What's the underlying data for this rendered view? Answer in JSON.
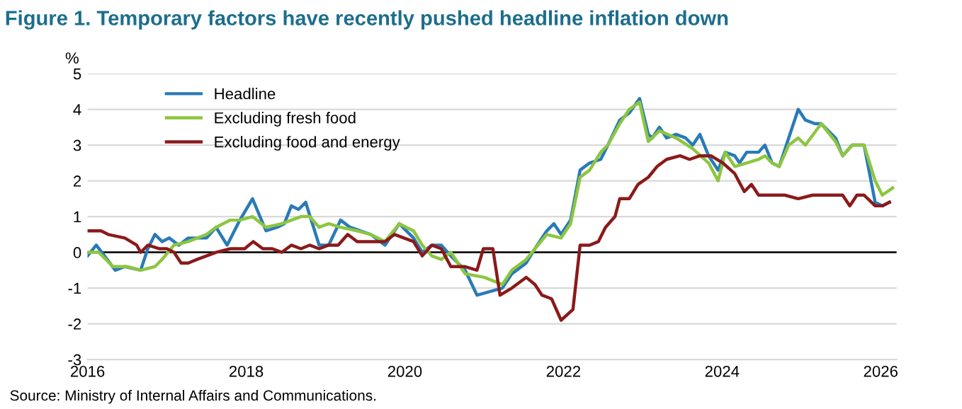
{
  "chart_data": {
    "type": "line",
    "title": "Figure 1. Temporary factors have recently pushed headline inflation down",
    "ylabel": "%",
    "annotations": [
      "Source: Ministry of Internal Affairs and Communications."
    ],
    "series": [
      {
        "name": "Headline",
        "color": "#2a7ab8",
        "x": [
          2016.0,
          2016.11,
          2016.35,
          2016.47,
          2016.67,
          2016.76,
          2016.85,
          2016.94,
          2017.03,
          2017.15,
          2017.27,
          2017.5,
          2017.62,
          2017.76,
          2017.92,
          2018.08,
          2018.25,
          2018.39,
          2018.48,
          2018.57,
          2018.66,
          2018.75,
          2018.92,
          2019.04,
          2019.19,
          2019.31,
          2019.57,
          2019.75,
          2019.93,
          2020.11,
          2020.22,
          2020.34,
          2020.46,
          2020.58,
          2020.76,
          2020.91,
          2021.23,
          2021.35,
          2021.53,
          2021.64,
          2021.79,
          2021.88,
          2021.97,
          2022.09,
          2022.21,
          2022.33,
          2022.47,
          2022.56,
          2022.71,
          2022.83,
          2022.96,
          2023.07,
          2023.12,
          2023.21,
          2023.3,
          2023.42,
          2023.54,
          2023.63,
          2023.72,
          2023.83,
          2023.95,
          2024.04,
          2024.16,
          2024.22,
          2024.31,
          2024.46,
          2024.54,
          2024.63,
          2024.72,
          2024.84,
          2024.96,
          2025.05,
          2025.17,
          2025.25,
          2025.43,
          2025.52,
          2025.64,
          2025.79,
          2025.93,
          2026.02,
          2026.11
        ],
        "values": [
          -0.1,
          0.2,
          -0.5,
          -0.4,
          -0.5,
          0.1,
          0.5,
          0.3,
          0.4,
          0.2,
          0.4,
          0.4,
          0.7,
          0.2,
          0.9,
          1.5,
          0.6,
          0.7,
          0.8,
          1.3,
          1.2,
          1.4,
          0.2,
          0.2,
          0.9,
          0.7,
          0.5,
          0.2,
          0.8,
          0.4,
          0.0,
          0.2,
          0.2,
          -0.1,
          -0.5,
          -1.2,
          -1.0,
          -0.6,
          -0.3,
          0.1,
          0.6,
          0.8,
          0.5,
          0.9,
          2.3,
          2.5,
          2.6,
          3.0,
          3.7,
          3.9,
          4.3,
          3.3,
          3.2,
          3.5,
          3.2,
          3.3,
          3.2,
          3.0,
          3.3,
          2.7,
          2.3,
          2.8,
          2.7,
          2.5,
          2.8,
          2.8,
          3.0,
          2.5,
          2.4,
          3.2,
          4.0,
          3.7,
          3.6,
          3.6,
          3.2,
          2.7,
          3.0,
          3.0,
          1.4,
          1.3,
          1.4
        ]
      },
      {
        "name": "Excluding fresh food",
        "color": "#8cc63f",
        "x": [
          2016.0,
          2016.14,
          2016.32,
          2016.5,
          2016.67,
          2016.85,
          2016.94,
          2017.09,
          2017.27,
          2017.5,
          2017.62,
          2017.8,
          2017.92,
          2018.08,
          2018.25,
          2018.45,
          2018.69,
          2018.8,
          2018.92,
          2019.04,
          2019.19,
          2019.4,
          2019.57,
          2019.75,
          2019.93,
          2020.11,
          2020.22,
          2020.34,
          2020.46,
          2020.58,
          2020.76,
          2021.0,
          2021.23,
          2021.35,
          2021.53,
          2021.64,
          2021.79,
          2021.97,
          2022.09,
          2022.21,
          2022.33,
          2022.47,
          2022.56,
          2022.71,
          2022.83,
          2022.96,
          2023.07,
          2023.21,
          2023.42,
          2023.63,
          2023.83,
          2023.95,
          2024.04,
          2024.16,
          2024.31,
          2024.46,
          2024.54,
          2024.63,
          2024.72,
          2024.84,
          2024.96,
          2025.05,
          2025.25,
          2025.43,
          2025.52,
          2025.64,
          2025.79,
          2025.93,
          2026.02,
          2026.15
        ],
        "values": [
          0.0,
          0.0,
          -0.4,
          -0.4,
          -0.5,
          -0.4,
          -0.2,
          0.2,
          0.3,
          0.5,
          0.7,
          0.9,
          0.9,
          1.0,
          0.7,
          0.8,
          1.0,
          1.0,
          0.7,
          0.8,
          0.7,
          0.6,
          0.5,
          0.3,
          0.8,
          0.6,
          0.2,
          -0.1,
          -0.2,
          0.0,
          -0.6,
          -0.7,
          -0.9,
          -0.5,
          -0.2,
          0.1,
          0.5,
          0.4,
          0.8,
          2.1,
          2.3,
          2.8,
          3.0,
          3.6,
          4.0,
          4.2,
          3.1,
          3.4,
          3.2,
          2.9,
          2.5,
          2.0,
          2.8,
          2.4,
          2.5,
          2.6,
          2.7,
          2.5,
          2.4,
          3.0,
          3.2,
          3.0,
          3.6,
          3.1,
          2.7,
          3.0,
          3.0,
          2.0,
          1.6,
          1.8
        ]
      },
      {
        "name": "Excluding food and energy",
        "color": "#8b1a1a",
        "x": [
          2016.0,
          2016.17,
          2016.26,
          2016.47,
          2016.62,
          2016.67,
          2016.76,
          2016.91,
          2017.0,
          2017.09,
          2017.18,
          2017.27,
          2017.38,
          2017.5,
          2017.62,
          2017.8,
          2017.98,
          2018.09,
          2018.21,
          2018.33,
          2018.45,
          2018.57,
          2018.69,
          2018.8,
          2018.92,
          2019.04,
          2019.16,
          2019.28,
          2019.4,
          2019.57,
          2019.75,
          2019.87,
          2019.99,
          2020.11,
          2020.22,
          2020.34,
          2020.46,
          2020.58,
          2020.76,
          2020.91,
          2020.99,
          2021.11,
          2021.2,
          2021.35,
          2021.53,
          2021.64,
          2021.73,
          2021.85,
          2021.97,
          2022.12,
          2022.21,
          2022.33,
          2022.44,
          2022.53,
          2022.65,
          2022.71,
          2022.83,
          2022.94,
          2023.07,
          2023.18,
          2023.3,
          2023.47,
          2023.59,
          2023.72,
          2023.86,
          2024.01,
          2024.16,
          2024.28,
          2024.37,
          2024.46,
          2024.54,
          2024.7,
          2024.79,
          2024.96,
          2025.14,
          2025.43,
          2025.52,
          2025.61,
          2025.7,
          2025.79,
          2025.93,
          2026.02,
          2026.11
        ],
        "values": [
          0.6,
          0.6,
          0.5,
          0.4,
          0.2,
          0.0,
          0.2,
          0.1,
          0.1,
          0.0,
          -0.3,
          -0.3,
          -0.2,
          -0.1,
          0.0,
          0.1,
          0.1,
          0.3,
          0.1,
          0.1,
          0.0,
          0.2,
          0.1,
          0.2,
          0.1,
          0.2,
          0.2,
          0.5,
          0.3,
          0.3,
          0.3,
          0.5,
          0.4,
          0.3,
          -0.1,
          0.2,
          0.1,
          -0.4,
          -0.4,
          -0.5,
          0.1,
          0.1,
          -1.2,
          -1.0,
          -0.7,
          -0.9,
          -1.2,
          -1.3,
          -1.9,
          -1.6,
          0.2,
          0.2,
          0.3,
          0.7,
          1.0,
          1.5,
          1.5,
          1.9,
          2.1,
          2.4,
          2.6,
          2.7,
          2.6,
          2.7,
          2.7,
          2.5,
          2.2,
          1.7,
          1.9,
          1.6,
          1.6,
          1.6,
          1.6,
          1.5,
          1.6,
          1.6,
          1.6,
          1.3,
          1.6,
          1.6,
          1.3,
          1.3,
          1.4
        ]
      }
    ],
    "xlim": [
      2016,
      2026.2
    ],
    "xticks": [
      2016,
      2018,
      2020,
      2022,
      2024,
      2026
    ],
    "ylim": [
      -3,
      5
    ],
    "yticks": [
      -3,
      -2,
      -1,
      0,
      1,
      2,
      3,
      4,
      5
    ],
    "ref_lines": [
      {
        "axis": "y",
        "value": 0,
        "color": "#000000"
      }
    ],
    "grid": "y",
    "legend": "top left",
    "line_style": "solid",
    "marker": "none"
  }
}
